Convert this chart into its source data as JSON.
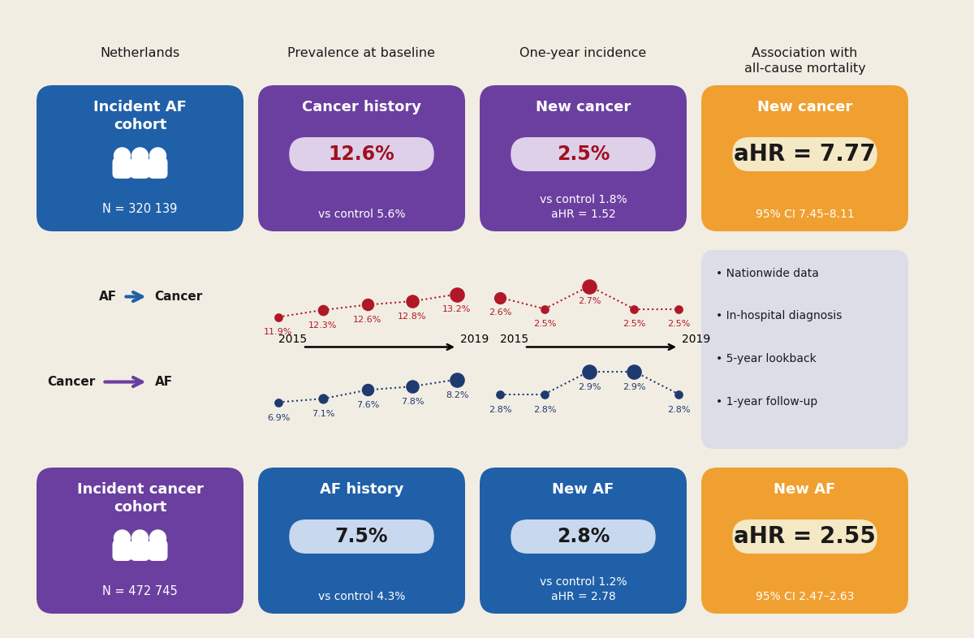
{
  "bg_color": "#f2ede3",
  "colors": {
    "blue": "#2060a8",
    "purple": "#6b3fa0",
    "orange": "#f0a030",
    "red_val": "#a01020",
    "blue_dot": "#1e3a70",
    "red_dot": "#b01828",
    "text_dark": "#1a1a1a",
    "text_white": "#ffffff",
    "pill_purple": "#ddd0e8",
    "pill_blue": "#c8d8ee",
    "pill_orange": "#f5e8c5",
    "bullet_bg": "#dddde8"
  },
  "col_headers": [
    "Netherlands",
    "Prevalence at baseline",
    "One-year incidence",
    "Association with\nall-cause mortality"
  ],
  "row1": {
    "box1": {
      "bg": "#2060a8",
      "title": "Incident AF\ncohort",
      "n": "N = 320 139"
    },
    "box2": {
      "bg": "#6b3fa0",
      "title": "Cancer history",
      "pill": "12.6%",
      "sub": "vs control 5.6%",
      "pill_color": "#ddd0e8",
      "pill_text_color": "#a01020"
    },
    "box3": {
      "bg": "#6b3fa0",
      "title": "New cancer",
      "pill": "2.5%",
      "sub": "vs control 1.8%\naHR = 1.52",
      "pill_color": "#ddd0e8",
      "pill_text_color": "#a01020"
    },
    "box4": {
      "bg": "#f0a030",
      "title": "New cancer",
      "pill": "aHR = 7.77",
      "sub": "95% CI 7.45–8.11",
      "pill_color": "#f5e8c5",
      "pill_text_color": "#1a1a1a"
    }
  },
  "row3": {
    "box1": {
      "bg": "#6b3fa0",
      "title": "Incident cancer\ncohort",
      "n": "N = 472 745"
    },
    "box2": {
      "bg": "#2060a8",
      "title": "AF history",
      "pill": "7.5%",
      "sub": "vs control 4.3%",
      "pill_color": "#c8d8ee",
      "pill_text_color": "#1a1a1a"
    },
    "box3": {
      "bg": "#2060a8",
      "title": "New AF",
      "pill": "2.8%",
      "sub": "vs control 1.2%\naHR = 2.78",
      "pill_color": "#c8d8ee",
      "pill_text_color": "#1a1a1a"
    },
    "box4": {
      "bg": "#f0a030",
      "title": "New AF",
      "pill": "aHR = 2.55",
      "sub": "95% CI 2.47–2.63",
      "pill_color": "#f5e8c5",
      "pill_text_color": "#1a1a1a"
    }
  },
  "trend_af_cancer_prev": {
    "values": [
      11.9,
      12.3,
      12.6,
      12.8,
      13.2
    ],
    "labels": [
      "11.9%",
      "12.3%",
      "12.6%",
      "12.8%",
      "13.2%"
    ],
    "color": "#b01828"
  },
  "trend_af_cancer_inc": {
    "values": [
      2.6,
      2.5,
      2.7,
      2.5,
      2.5
    ],
    "labels": [
      "2.6%",
      "2.5%",
      "2.7%",
      "2.5%",
      "2.5%"
    ],
    "color": "#b01828"
  },
  "trend_cancer_af_prev": {
    "values": [
      6.9,
      7.1,
      7.6,
      7.8,
      8.2
    ],
    "labels": [
      "6.9%",
      "7.1%",
      "7.6%",
      "7.8%",
      "8.2%"
    ],
    "color": "#1e3a70"
  },
  "trend_cancer_af_inc": {
    "values": [
      2.8,
      2.8,
      2.9,
      2.9,
      2.8
    ],
    "labels": [
      "2.8%",
      "2.8%",
      "2.9%",
      "2.9%",
      "2.8%"
    ],
    "color": "#1e3a70"
  },
  "bullet_points": [
    "Nationwide data",
    "In-hospital diagnosis",
    "5-year lookback",
    "1-year follow-up"
  ]
}
